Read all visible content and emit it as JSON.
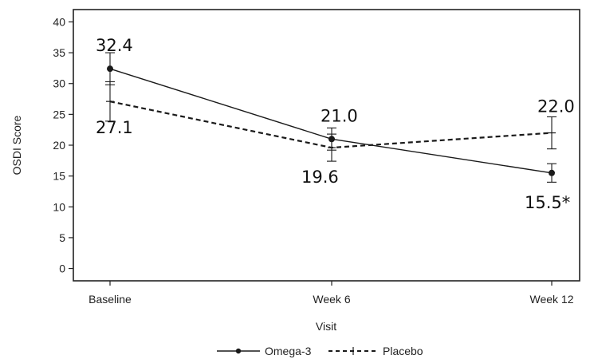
{
  "chart_data": {
    "type": "line",
    "xlabel": "Visit",
    "ylabel": "OSDI Score",
    "categories": [
      "Baseline",
      "Week 6",
      "Week 12"
    ],
    "ylim": [
      -2,
      42
    ],
    "yticks": [
      0,
      5,
      10,
      15,
      20,
      25,
      30,
      35,
      40
    ],
    "grid": false,
    "legend_position": "bottom",
    "series": [
      {
        "name": "Omega-3",
        "style": "solid",
        "marker": "dot",
        "color": "#1a1a1a",
        "values": [
          32.4,
          21.0,
          15.5
        ],
        "error_low": [
          29.8,
          19.2,
          14.0
        ],
        "error_high": [
          35.0,
          22.8,
          17.0
        ],
        "labels": [
          "32.4",
          "21.0",
          "15.5*"
        ]
      },
      {
        "name": "Placebo",
        "style": "dashed",
        "marker": "plus",
        "color": "#1a1a1a",
        "values": [
          27.1,
          19.6,
          22.0
        ],
        "error_low": [
          23.9,
          17.4,
          19.4
        ],
        "error_high": [
          30.3,
          21.8,
          24.6
        ],
        "labels": [
          "27.1",
          "19.6",
          "22.0"
        ]
      }
    ]
  }
}
